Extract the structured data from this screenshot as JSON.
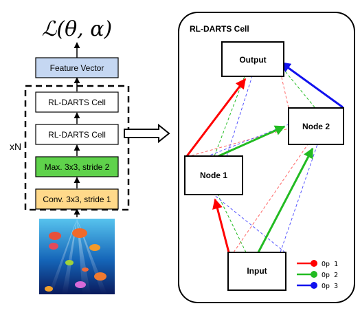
{
  "loss_label": "ℒ(θ, α)",
  "repeat_label": "xN",
  "stack_blocks": [
    {
      "label": "Feature Vector",
      "fill": "#c5d7f2"
    },
    {
      "label": "RL-DARTS Cell",
      "fill": "#ffffff"
    },
    {
      "label": "RL-DARTS Cell",
      "fill": "#ffffff"
    },
    {
      "label": "Max. 3x3, stride 2",
      "fill": "#5fd24b"
    },
    {
      "label": "Conv. 3x3, stride 1",
      "fill": "#ffd98a"
    }
  ],
  "input_image": {
    "depicts": "underwater scene with colorful fish",
    "colors": {
      "top": "#57c3ee",
      "bottom": "#0a1a5c"
    }
  },
  "cell_panel": {
    "title": "RL-DARTS Cell",
    "nodes": {
      "output": "Output",
      "node2": "Node 2",
      "node1": "Node 1",
      "input": "Input"
    }
  },
  "legend": [
    {
      "label": "Op  1",
      "color": "#ff0000"
    },
    {
      "label": "Op  2",
      "color": "#22bb22"
    },
    {
      "label": "Op  3",
      "color": "#1111ee"
    }
  ]
}
